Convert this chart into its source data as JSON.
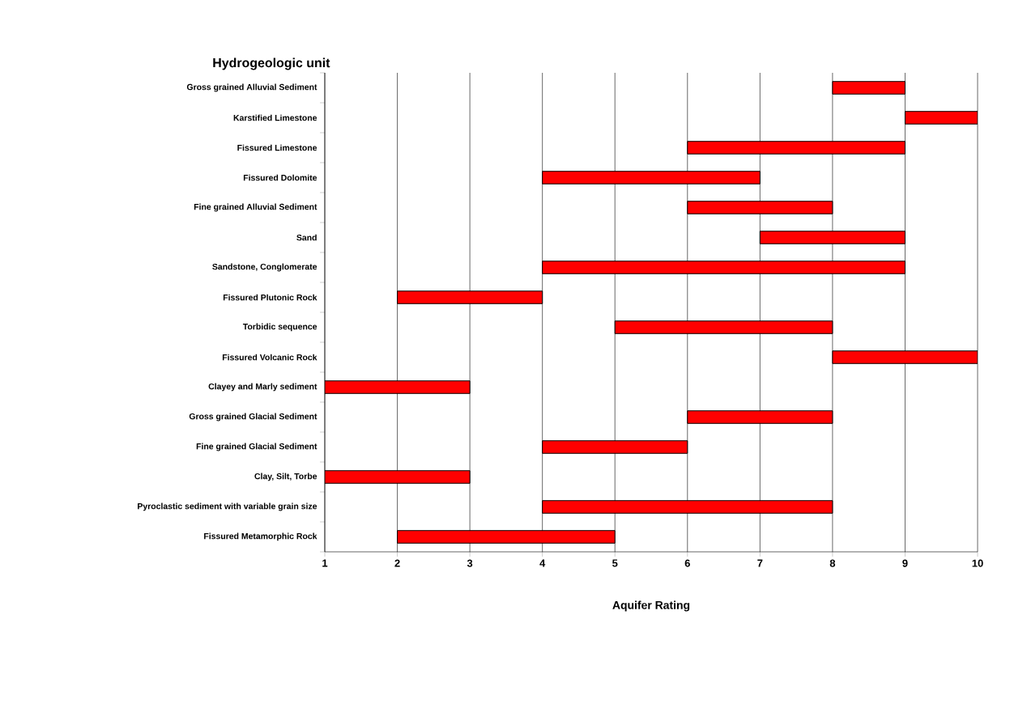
{
  "chart_data": {
    "type": "bar",
    "orientation": "horizontal",
    "xlabel": "Aquifer Rating",
    "ylabel": "Hydrogeologic unit",
    "categories": [
      "Gross grained Alluvial Sediment",
      "Karstified Limestone",
      "Fissured Limestone",
      "Fissured Dolomite",
      "Fine grained Alluvial Sediment",
      "Sand",
      "Sandstone, Conglomerate",
      "Fissured Plutonic Rock",
      "Torbidic sequence",
      "Fissured Volcanic Rock",
      "Clayey and Marly sediment",
      "Gross grained Glacial Sediment",
      "Fine grained Glacial Sediment",
      "Clay, Silt, Torbe",
      "Pyroclastic sediment with variable grain size",
      "Fissured Metamorphic Rock"
    ],
    "base": [
      8,
      9,
      6,
      4,
      6,
      7,
      4,
      2,
      5,
      8,
      1,
      6,
      4,
      1,
      4,
      2
    ],
    "values": [
      1,
      1,
      3,
      3,
      2,
      2,
      5,
      2,
      3,
      2,
      2,
      2,
      2,
      2,
      4,
      3
    ],
    "color": "#ff0000",
    "xlim": [
      1,
      10
    ],
    "xticks": [
      1,
      2,
      3,
      4,
      5,
      6,
      7,
      8,
      9,
      10
    ],
    "grid": "x"
  }
}
